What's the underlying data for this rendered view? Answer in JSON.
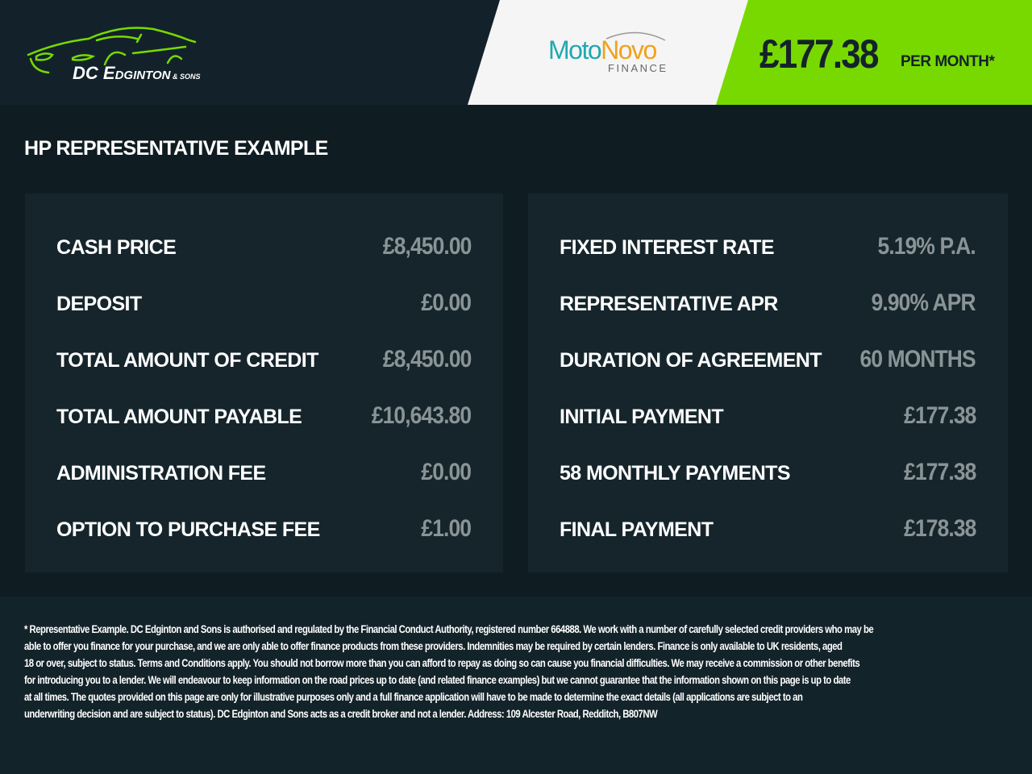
{
  "header": {
    "logo_text": "DC EDGINTON & SONS",
    "lender_logo": "MotoNovo",
    "lender_logo_sub": "FINANCE",
    "monthly_price": "£177.38",
    "monthly_label": "PER MONTH*",
    "accent": "#78d900"
  },
  "title": "HP REPRESENTATIVE EXAMPLE",
  "left_rows": [
    {
      "label": "CASH PRICE",
      "value": "£8,450.00"
    },
    {
      "label": "DEPOSIT",
      "value": "£0.00"
    },
    {
      "label": "TOTAL AMOUNT OF CREDIT",
      "value": "£8,450.00"
    },
    {
      "label": "TOTAL AMOUNT PAYABLE",
      "value": "£10,643.80"
    },
    {
      "label": "ADMINISTRATION FEE",
      "value": "£0.00"
    },
    {
      "label": "OPTION TO PURCHASE FEE",
      "value": "£1.00"
    }
  ],
  "right_rows": [
    {
      "label": "FIXED INTEREST RATE",
      "value": "5.19% P.A."
    },
    {
      "label": "REPRESENTATIVE APR",
      "value": "9.90% APR"
    },
    {
      "label": "DURATION OF AGREEMENT",
      "value": "60 MONTHS"
    },
    {
      "label": "INITIAL PAYMENT",
      "value": "£177.38"
    },
    {
      "label": "58 MONTHLY PAYMENTS",
      "value": "£177.38"
    },
    {
      "label": "FINAL PAYMENT",
      "value": "£178.38"
    }
  ],
  "disclaimer_lines": [
    "* Representative Example. DC Edginton and Sons is authorised and regulated by the Financial Conduct Authority, registered number 664888. We work with a number of carefully selected credit providers who may be",
    "able to offer you finance for your purchase, and we are only able to offer finance products from these providers. Indemnities may be required by certain lenders. Finance is only available to UK residents, aged",
    "18 or over, subject to status. Terms and Conditions apply. You should not borrow more than you can afford to repay as doing so can cause you financial difficulties. We may receive a commission or other benefits",
    "for introducing you to a lender. We will endeavour to keep information on the road prices up to date (and related finance examples) but we cannot guarantee that the information shown on this page is up to date",
    "at all times. The quotes provided on this page are only for illustrative purposes only and a full finance application will have to be made to determine the exact details (all applications are subject to an",
    "underwriting decision and are subject to status). DC Edginton and Sons acts as a credit broker and not a lender. Address: 109 Alcester Road, Redditch, B807NW"
  ]
}
